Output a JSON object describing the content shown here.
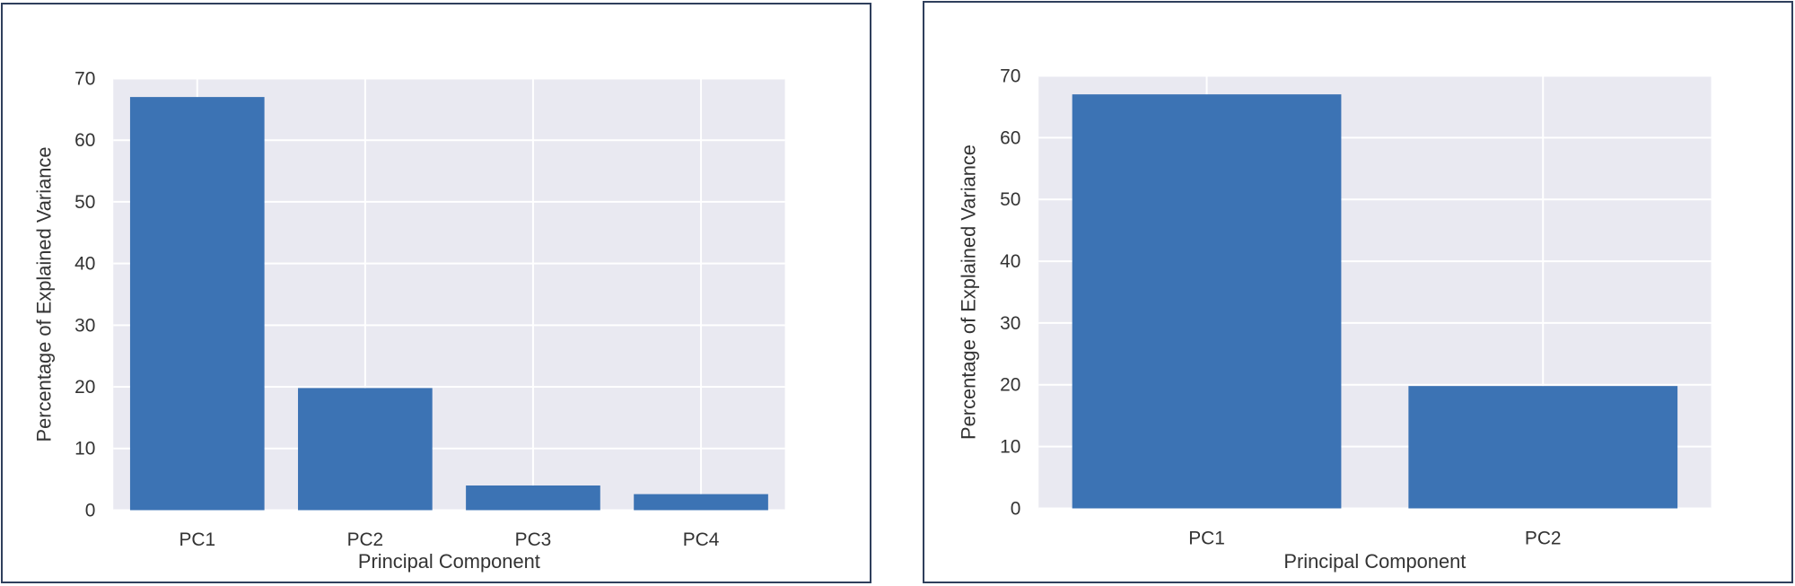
{
  "chart_data": [
    {
      "type": "bar",
      "categories": [
        "PC1",
        "PC2",
        "PC3",
        "PC4"
      ],
      "values": [
        67,
        19.8,
        4,
        2.6
      ],
      "title": "",
      "xlabel": "Principal Component",
      "ylabel": "Percentage of Explained Variance",
      "ylim": [
        0,
        70
      ],
      "yticks": [
        "0",
        "10",
        "20",
        "30",
        "40",
        "50",
        "60",
        "70"
      ],
      "grid": true,
      "bar_color": "#3c73b4",
      "background_color": "#e9e9f1"
    },
    {
      "type": "bar",
      "categories": [
        "PC1",
        "PC2"
      ],
      "values": [
        67,
        19.8
      ],
      "title": "",
      "xlabel": "Principal Component",
      "ylabel": "Percentage of Explained Variance",
      "ylim": [
        0,
        70
      ],
      "yticks": [
        "0",
        "10",
        "20",
        "30",
        "40",
        "50",
        "60",
        "70"
      ],
      "grid": true,
      "bar_color": "#3c73b4",
      "background_color": "#e9e9f1"
    }
  ]
}
